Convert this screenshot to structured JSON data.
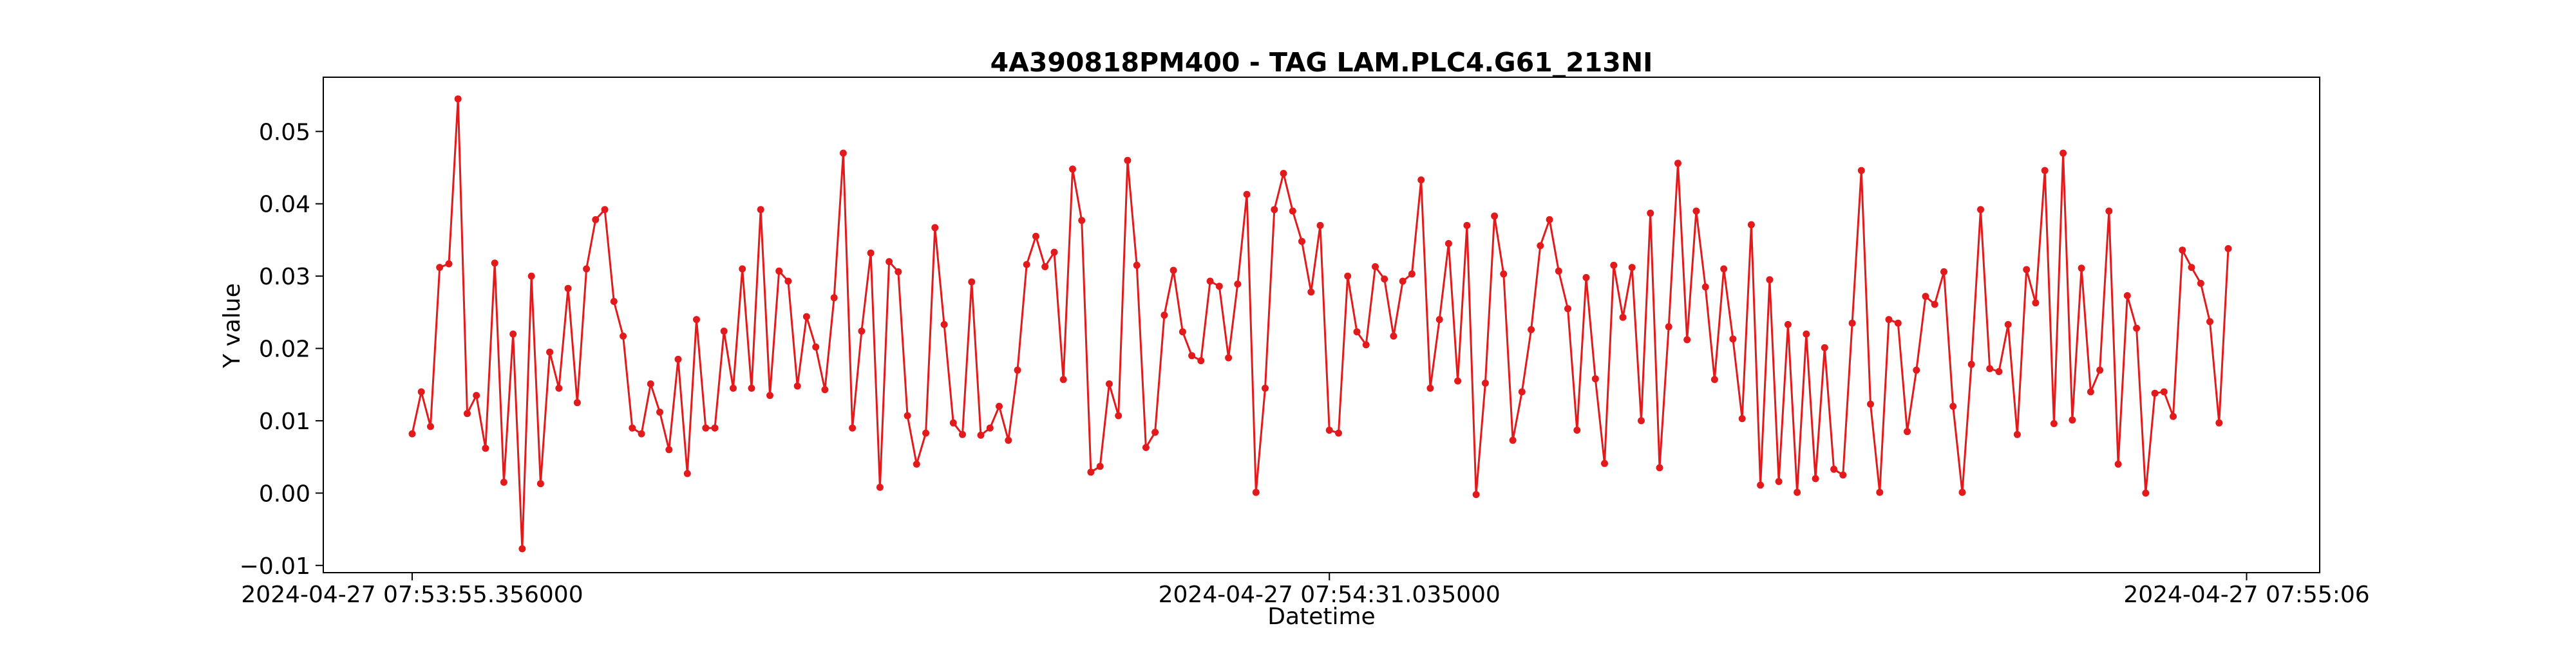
{
  "chart_data": {
    "type": "line",
    "title": "4A390818PM400 - TAG LAM.PLC4.G61_213NI",
    "xlabel": "Datetime",
    "ylabel": "Y value",
    "x_range": [
      "2024-04-27 07:53:55.356000",
      "2024-04-27 07:55:06"
    ],
    "ylim": [
      -0.011,
      0.0575
    ],
    "x_ticks": [
      {
        "value": 0,
        "label": "2024-04-27 07:53:55.356000"
      },
      {
        "value": 100,
        "label": "2024-04-27 07:54:31.035000"
      },
      {
        "value": 200,
        "label": "2024-04-27 07:55:06"
      }
    ],
    "y_ticks": [
      {
        "value": -0.01,
        "label": "−0.01"
      },
      {
        "value": 0.0,
        "label": "0.00"
      },
      {
        "value": 0.01,
        "label": "0.01"
      },
      {
        "value": 0.02,
        "label": "0.02"
      },
      {
        "value": 0.03,
        "label": "0.03"
      },
      {
        "value": 0.04,
        "label": "0.04"
      },
      {
        "value": 0.05,
        "label": "0.05"
      }
    ],
    "grid": false,
    "series": [
      {
        "color": "#e31a1c",
        "values": [
          0.0082,
          0.014,
          0.0092,
          0.0312,
          0.0317,
          0.0545,
          0.011,
          0.0135,
          0.0062,
          0.0318,
          0.0015,
          0.022,
          -0.0077,
          0.03,
          0.0013,
          0.0195,
          0.0145,
          0.0283,
          0.0125,
          0.031,
          0.0378,
          0.0392,
          0.0265,
          0.0217,
          0.009,
          0.0082,
          0.0151,
          0.0112,
          0.006,
          0.0185,
          0.0027,
          0.024,
          0.009,
          0.009,
          0.0224,
          0.0145,
          0.031,
          0.0145,
          0.0392,
          0.0135,
          0.0307,
          0.0293,
          0.0148,
          0.0244,
          0.0202,
          0.0143,
          0.027,
          0.047,
          0.009,
          0.0224,
          0.0332,
          0.0008,
          0.032,
          0.0306,
          0.0107,
          0.004,
          0.0083,
          0.0367,
          0.0233,
          0.0097,
          0.0081,
          0.0292,
          0.008,
          0.009,
          0.012,
          0.0073,
          0.017,
          0.0316,
          0.0355,
          0.0313,
          0.0333,
          0.0157,
          0.0448,
          0.0377,
          0.0029,
          0.0037,
          0.0151,
          0.0107,
          0.046,
          0.0315,
          0.0063,
          0.0084,
          0.0246,
          0.0308,
          0.0223,
          0.019,
          0.0183,
          0.0293,
          0.0286,
          0.0187,
          0.0289,
          0.0413,
          0.0001,
          0.0145,
          0.0392,
          0.0442,
          0.039,
          0.0348,
          0.0278,
          0.037,
          0.0087,
          0.0083,
          0.03,
          0.0223,
          0.0205,
          0.0313,
          0.0296,
          0.0217,
          0.0293,
          0.0303,
          0.0433,
          0.0145,
          0.024,
          0.0345,
          0.0155,
          0.037,
          -0.0002,
          0.0152,
          0.0383,
          0.0303,
          0.0073,
          0.014,
          0.0226,
          0.0342,
          0.0378,
          0.0307,
          0.0255,
          0.0087,
          0.0298,
          0.0158,
          0.0041,
          0.0315,
          0.0243,
          0.0312,
          0.01,
          0.0387,
          0.0035,
          0.023,
          0.0456,
          0.0212,
          0.039,
          0.0285,
          0.0157,
          0.031,
          0.0213,
          0.0103,
          0.0371,
          0.0011,
          0.0295,
          0.0016,
          0.0233,
          0.0001,
          0.022,
          0.002,
          0.0201,
          0.0033,
          0.0025,
          0.0235,
          0.0446,
          0.0123,
          0.0001,
          0.024,
          0.0235,
          0.0085,
          0.017,
          0.0272,
          0.0261,
          0.0306,
          0.012,
          0.0001,
          0.0178,
          0.0392,
          0.0172,
          0.0168,
          0.0233,
          0.0081,
          0.0309,
          0.0263,
          0.0446,
          0.0096,
          0.047,
          0.0101,
          0.0311,
          0.014,
          0.017,
          0.039,
          0.004,
          0.0273,
          0.0228,
          0.0,
          0.0138,
          0.014,
          0.0106,
          0.0336,
          0.0312,
          0.029,
          0.0237,
          0.0097,
          0.0338
        ]
      }
    ]
  }
}
